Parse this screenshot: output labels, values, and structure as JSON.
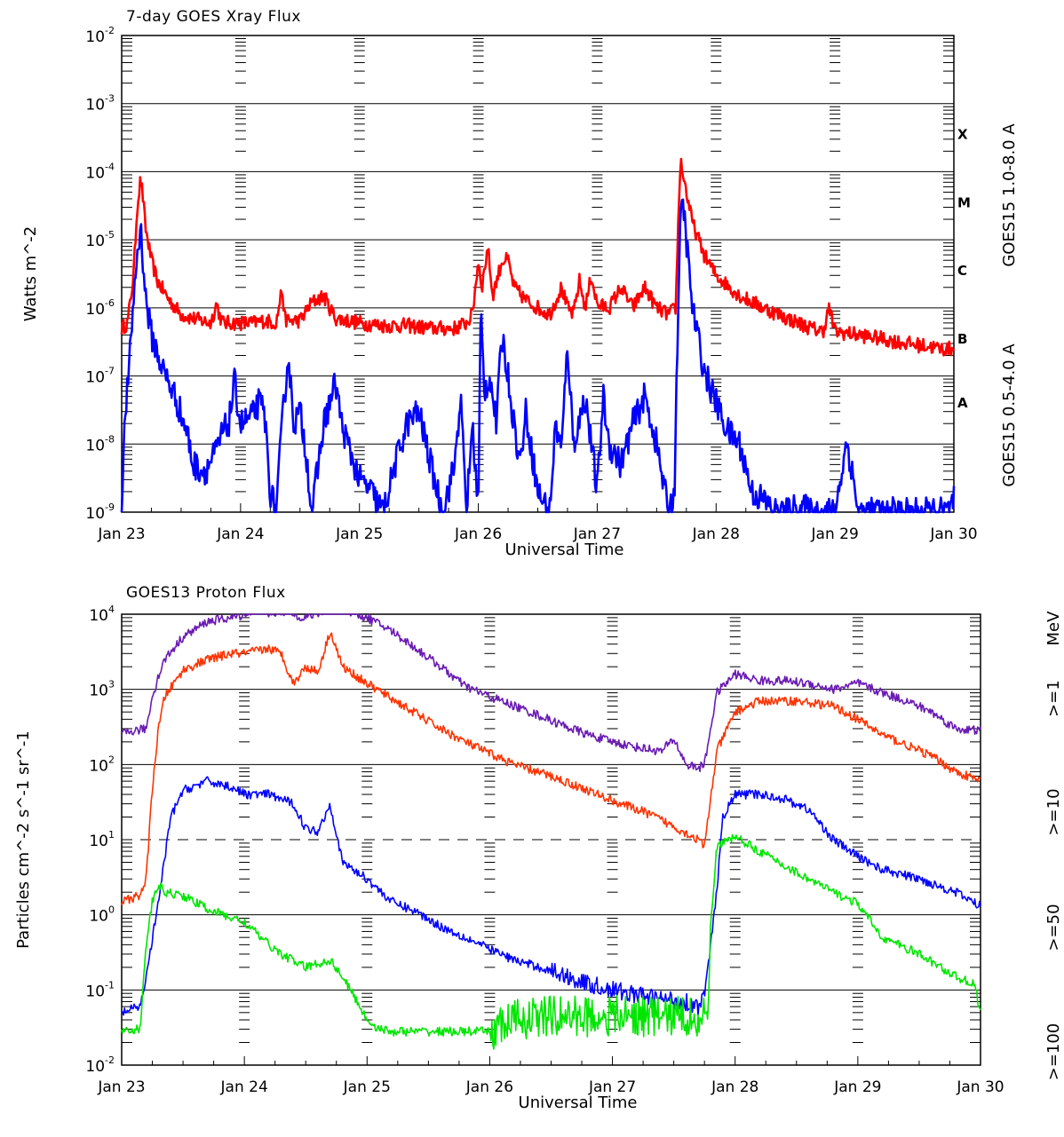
{
  "chart_data": [
    {
      "type": "line",
      "title": "7-day GOES Xray Flux",
      "xlabel": "Universal Time",
      "ylabel": "Watts m^-2",
      "y_scale": "log",
      "ylim": [
        1e-09,
        0.01
      ],
      "xlim": [
        "Jan 23",
        "Jan 30"
      ],
      "x_ticks": [
        "Jan 23",
        "Jan 24",
        "Jan 25",
        "Jan 26",
        "Jan 27",
        "Jan 28",
        "Jan 29",
        "Jan 30"
      ],
      "y_ticks": [
        {
          "base": "10",
          "exp": "-9",
          "value": 1e-09
        },
        {
          "base": "10",
          "exp": "-8",
          "value": 1e-08
        },
        {
          "base": "10",
          "exp": "-7",
          "value": 1e-07
        },
        {
          "base": "10",
          "exp": "-6",
          "value": 1e-06
        },
        {
          "base": "10",
          "exp": "-5",
          "value": 1e-05
        },
        {
          "base": "10",
          "exp": "-4",
          "value": 0.0001
        },
        {
          "base": "10",
          "exp": "-3",
          "value": 0.001
        },
        {
          "base": "10",
          "exp": "-2",
          "value": 0.01
        }
      ],
      "class_labels": [
        {
          "label": "A",
          "value": 4e-08
        },
        {
          "label": "B",
          "value": 3.5e-07
        },
        {
          "label": "C",
          "value": 3.5e-06
        },
        {
          "label": "M",
          "value": 3.5e-05
        },
        {
          "label": "X",
          "value": 0.00035
        }
      ],
      "grid": "horizontal at decades",
      "series": [
        {
          "name": "GOES15 1.0-8.0 A",
          "color": "#ff0000",
          "x": [
            0.0,
            0.05,
            0.1,
            0.13,
            0.16,
            0.18,
            0.2,
            0.25,
            0.3,
            0.4,
            0.5,
            0.6,
            0.75,
            0.8,
            0.82,
            0.85,
            0.9,
            1.0,
            1.1,
            1.2,
            1.3,
            1.35,
            1.37,
            1.4,
            1.5,
            1.6,
            1.7,
            1.75,
            1.8,
            1.9,
            2.0,
            2.2,
            2.4,
            2.6,
            2.8,
            2.9,
            2.95,
            3.0,
            3.03,
            3.08,
            3.12,
            3.2,
            3.25,
            3.3,
            3.4,
            3.5,
            3.6,
            3.7,
            3.75,
            3.8,
            3.85,
            3.9,
            3.95,
            4.0,
            4.1,
            4.2,
            4.3,
            4.4,
            4.5,
            4.6,
            4.66,
            4.68,
            4.7,
            4.75,
            4.8,
            4.9,
            5.0,
            5.2,
            5.4,
            5.6,
            5.8,
            5.9,
            5.95,
            6.0,
            6.2,
            6.4,
            6.6,
            6.8,
            6.9,
            7.0
          ],
          "values": [
            5e-07,
            6e-07,
            3e-06,
            3e-05,
            8e-05,
            4e-05,
            1.5e-05,
            5e-06,
            2.5e-06,
            1.3e-06,
            8e-07,
            7e-07,
            6e-07,
            1.2e-06,
            8e-07,
            6e-07,
            6e-07,
            6e-07,
            6e-07,
            6.5e-07,
            6e-07,
            2e-06,
            7e-07,
            6.5e-07,
            6.5e-07,
            1.2e-06,
            1.5e-06,
            1e-06,
            7e-07,
            6.5e-07,
            6e-07,
            5.5e-07,
            5.5e-07,
            5e-07,
            5e-07,
            6e-07,
            8e-07,
            5e-06,
            2e-06,
            8e-06,
            1.5e-06,
            5e-06,
            5e-06,
            2e-06,
            1.3e-06,
            1e-06,
            8e-07,
            2e-06,
            1e-06,
            8e-07,
            2.5e-06,
            1e-06,
            3e-06,
            1.1e-06,
            1e-06,
            2e-06,
            1e-06,
            2e-06,
            1e-06,
            8e-07,
            1e-06,
            1.4e-05,
            0.00015,
            5e-05,
            1.8e-05,
            6e-06,
            3e-06,
            1.5e-06,
            1e-06,
            7e-07,
            5e-07,
            4.5e-07,
            1e-06,
            4.5e-07,
            4e-07,
            3.5e-07,
            3e-07,
            2.7e-07,
            2.5e-07,
            2.5e-07
          ]
        },
        {
          "name": "GOES15 0.5-4.0 A",
          "color": "#0000ff",
          "x": [
            0.0,
            0.03,
            0.06,
            0.09,
            0.13,
            0.16,
            0.18,
            0.2,
            0.25,
            0.35,
            0.45,
            0.55,
            0.6,
            0.7,
            0.8,
            0.85,
            0.9,
            0.95,
            1.0,
            1.1,
            1.15,
            1.2,
            1.25,
            1.3,
            1.35,
            1.4,
            1.45,
            1.5,
            1.55,
            1.6,
            1.7,
            1.8,
            1.85,
            1.9,
            2.0,
            2.1,
            2.2,
            2.3,
            2.4,
            2.5,
            2.6,
            2.7,
            2.8,
            2.85,
            2.9,
            2.95,
            3.0,
            3.02,
            3.05,
            3.1,
            3.15,
            3.2,
            3.25,
            3.3,
            3.35,
            3.4,
            3.5,
            3.6,
            3.65,
            3.7,
            3.75,
            3.8,
            3.9,
            4.0,
            4.05,
            4.1,
            4.2,
            4.3,
            4.4,
            4.5,
            4.55,
            4.6,
            4.65,
            4.68,
            4.7,
            4.72,
            4.75,
            4.8,
            4.9,
            5.0,
            5.1,
            5.2,
            5.3,
            5.4,
            5.5,
            5.6,
            5.7,
            5.8,
            5.9,
            6.0,
            6.1,
            6.2,
            6.4,
            6.6,
            6.8,
            6.95,
            7.0
          ],
          "values": [
            1e-09,
            3e-08,
            1e-07,
            8e-07,
            6e-06,
            1.5e-05,
            5e-06,
            1.5e-06,
            4e-07,
            1.2e-07,
            5e-08,
            1.5e-08,
            5e-09,
            4e-09,
            8e-09,
            1.5e-08,
            2e-08,
            8e-08,
            2e-08,
            2.5e-08,
            4e-08,
            3e-08,
            2e-09,
            1e-09,
            2e-08,
            2e-07,
            2e-08,
            3e-08,
            8e-09,
            1e-09,
            2e-08,
            8e-08,
            2e-08,
            1e-08,
            3e-09,
            2e-09,
            1e-09,
            5e-09,
            2e-08,
            3e-08,
            5e-09,
            1e-09,
            5e-09,
            5e-08,
            1e-09,
            2e-08,
            1e-09,
            1e-06,
            6e-08,
            1e-07,
            2e-08,
            4e-07,
            1e-07,
            2e-08,
            5e-09,
            3e-08,
            2e-09,
            1e-09,
            2e-08,
            8e-09,
            3e-07,
            1e-08,
            5e-08,
            2e-09,
            5e-08,
            1e-08,
            5e-09,
            2e-08,
            5e-08,
            1e-08,
            3e-09,
            1e-09,
            2e-09,
            1e-06,
            1.5e-05,
            4e-05,
            1e-05,
            1e-06,
            1.2e-07,
            4e-08,
            1.5e-08,
            1e-08,
            2e-09,
            1.5e-09,
            1e-09,
            1e-09,
            1.2e-09,
            1e-09,
            1e-09,
            1e-09,
            1.1e-08,
            1e-09,
            1e-09,
            1e-09,
            1e-09,
            1e-09,
            1.5e-09
          ]
        }
      ]
    },
    {
      "type": "line",
      "title": "GOES13 Proton Flux",
      "xlabel": "Universal Time",
      "ylabel": "Particles cm^-2 s^-1 sr^-1",
      "y_scale": "log",
      "ylim": [
        0.01,
        10000
      ],
      "xlim": [
        "Jan 23",
        "Jan 30"
      ],
      "x_ticks": [
        "Jan 23",
        "Jan 24",
        "Jan 25",
        "Jan 26",
        "Jan 27",
        "Jan 28",
        "Jan 29",
        "Jan 30"
      ],
      "y_ticks": [
        {
          "base": "10",
          "exp": "-2",
          "value": 0.01
        },
        {
          "base": "10",
          "exp": "-1",
          "value": 0.1
        },
        {
          "base": "10",
          "exp": "0",
          "value": 1
        },
        {
          "base": "10",
          "exp": "1",
          "value": 10
        },
        {
          "base": "10",
          "exp": "2",
          "value": 100
        },
        {
          "base": "10",
          "exp": "3",
          "value": 1000
        },
        {
          "base": "10",
          "exp": "4",
          "value": 10000
        }
      ],
      "legend_unit": "MeV",
      "grid": "horizontal at decades, dashed at 10",
      "series": [
        {
          "name": ">=1",
          "color": "#6a1bb3",
          "x": [
            0.0,
            0.1,
            0.2,
            0.25,
            0.3,
            0.35,
            0.5,
            0.7,
            0.9,
            1.0,
            1.1,
            1.2,
            1.3,
            1.5,
            1.7,
            1.8,
            2.0,
            2.2,
            2.4,
            2.6,
            2.8,
            3.0,
            3.2,
            3.4,
            3.6,
            3.8,
            4.0,
            4.2,
            4.4,
            4.5,
            4.6,
            4.7,
            4.75,
            4.85,
            5.0,
            5.2,
            5.4,
            5.6,
            5.8,
            6.0,
            6.2,
            6.4,
            6.6,
            6.8,
            7.0
          ],
          "values": [
            250,
            280,
            300,
            800,
            1500,
            2500,
            5000,
            8000,
            9000,
            10000,
            12000,
            10000,
            11000,
            9000,
            12000,
            12000,
            9000,
            6000,
            3500,
            2000,
            1100,
            800,
            600,
            450,
            330,
            250,
            200,
            170,
            150,
            220,
            100,
            90,
            100,
            900,
            1600,
            1300,
            1300,
            1200,
            1000,
            1200,
            900,
            700,
            500,
            300,
            280
          ]
        },
        {
          "name": ">=10",
          "color": "#ff3300",
          "x": [
            0.0,
            0.15,
            0.2,
            0.25,
            0.3,
            0.35,
            0.5,
            0.7,
            0.9,
            1.0,
            1.2,
            1.3,
            1.4,
            1.5,
            1.6,
            1.7,
            1.8,
            2.0,
            2.3,
            2.6,
            2.8,
            3.0,
            3.2,
            3.5,
            3.8,
            4.0,
            4.3,
            4.5,
            4.7,
            4.75,
            4.85,
            5.0,
            5.2,
            5.5,
            5.8,
            6.0,
            6.2,
            6.4,
            6.6,
            6.8,
            7.0
          ],
          "values": [
            1.5,
            1.8,
            3,
            50,
            300,
            800,
            1800,
            2500,
            3000,
            3000,
            3500,
            3000,
            1200,
            2000,
            1700,
            6000,
            2000,
            1200,
            600,
            300,
            200,
            140,
            100,
            70,
            45,
            33,
            22,
            15,
            10,
            8,
            150,
            500,
            700,
            700,
            600,
            400,
            250,
            180,
            130,
            80,
            60
          ]
        },
        {
          "name": ">=50",
          "color": "#0000ff",
          "x": [
            0.0,
            0.15,
            0.2,
            0.3,
            0.4,
            0.5,
            0.7,
            0.9,
            1.0,
            1.2,
            1.4,
            1.5,
            1.6,
            1.7,
            1.75,
            1.8,
            2.0,
            2.2,
            2.4,
            2.6,
            2.8,
            3.0,
            3.2,
            3.5,
            3.8,
            4.0,
            4.3,
            4.6,
            4.7,
            4.75,
            4.85,
            4.9,
            5.0,
            5.2,
            5.4,
            5.6,
            5.8,
            6.0,
            6.2,
            6.5,
            6.8,
            7.0
          ],
          "values": [
            0.05,
            0.06,
            0.15,
            1.5,
            20,
            45,
            60,
            50,
            40,
            40,
            30,
            14,
            13,
            30,
            12,
            5,
            3,
            1.5,
            1.1,
            0.7,
            0.5,
            0.35,
            0.25,
            0.18,
            0.12,
            0.1,
            0.08,
            0.07,
            0.06,
            0.08,
            2,
            20,
            40,
            40,
            35,
            25,
            10,
            6,
            4,
            3,
            2,
            1.3
          ]
        },
        {
          "name": ">=100",
          "color": "#00e600",
          "x": [
            0.0,
            0.15,
            0.2,
            0.25,
            0.3,
            0.35,
            0.5,
            0.7,
            0.9,
            1.0,
            1.2,
            1.3,
            1.5,
            1.7,
            1.8,
            1.9,
            2.0,
            2.1,
            2.2,
            2.4,
            2.6,
            2.8,
            3.0,
            3.2,
            3.5,
            3.8,
            4.0,
            4.3,
            4.6,
            4.7,
            4.78,
            4.8,
            4.85,
            5.0,
            5.2,
            5.4,
            5.6,
            5.8,
            6.0,
            6.2,
            6.5,
            6.8,
            6.95,
            7.0
          ],
          "values": [
            0.03,
            0.03,
            0.4,
            1.5,
            2.5,
            2,
            1.8,
            1.2,
            0.9,
            0.8,
            0.4,
            0.3,
            0.2,
            0.25,
            0.15,
            0.08,
            0.04,
            0.03,
            0.028,
            0.028,
            0.028,
            0.028,
            0.028,
            0.04,
            0.045,
            0.045,
            0.045,
            0.045,
            0.045,
            0.045,
            0.045,
            0.8,
            8,
            11,
            7,
            4.5,
            3,
            2,
            1.4,
            0.5,
            0.3,
            0.15,
            0.12,
            0.05
          ]
        }
      ]
    }
  ]
}
